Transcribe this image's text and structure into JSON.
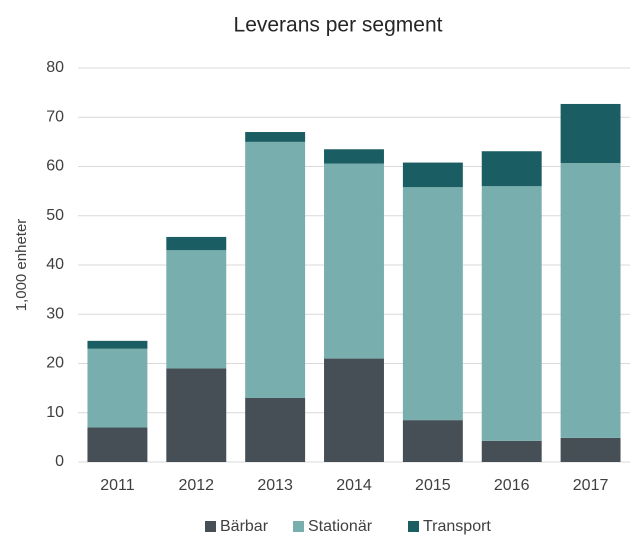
{
  "chart_data": {
    "type": "stacked_bar",
    "title": "Leverans per segment",
    "y_label": "1,000 enheter",
    "categories": [
      "2011",
      "2012",
      "2013",
      "2014",
      "2015",
      "2016",
      "2017"
    ],
    "series": [
      {
        "name": "Bärbar",
        "color": "#454f55",
        "values": [
          7,
          19,
          13,
          21,
          8.5,
          4.3,
          4.9
        ]
      },
      {
        "name": "Stationär",
        "color": "#79aeae",
        "values": [
          16,
          24,
          52,
          39.6,
          47.3,
          51.7,
          55.8
        ]
      },
      {
        "name": "Transport",
        "color": "#1a5e63",
        "values": [
          1.6,
          2.7,
          2,
          2.9,
          5,
          7.1,
          12
        ]
      }
    ],
    "ylim": [
      0,
      80
    ],
    "yticks": [
      0,
      10,
      20,
      30,
      40,
      50,
      60,
      70,
      80
    ],
    "grid": true,
    "legend": "bottom"
  }
}
